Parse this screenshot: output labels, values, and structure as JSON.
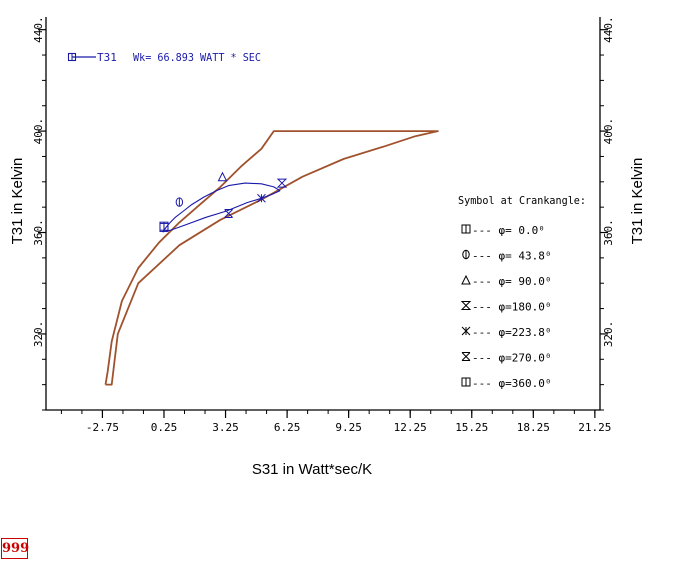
{
  "chart_data": {
    "type": "line",
    "title": "",
    "xlabel": "S31  in  Watt*sec/K",
    "ylabel_left": "T31  in Kelvin",
    "ylabel_right": "T31  in Kelvin",
    "xlim": [
      -5.5,
      21.5
    ],
    "ylim": [
      290,
      445
    ],
    "x_ticks": [
      -2.75,
      0.25,
      3.25,
      6.25,
      9.25,
      12.25,
      15.25,
      18.25,
      21.25
    ],
    "x_tick_labels": [
      "-2.75",
      "0.25",
      "3.25",
      "6.25",
      "9.25",
      "12.25",
      "15.25",
      "18.25",
      "21.25"
    ],
    "y_ticks": [
      320,
      360,
      400,
      440
    ],
    "y_tick_labels": [
      "320.",
      "360.",
      "400.",
      "440."
    ],
    "grid": false,
    "legend_entry": "T31",
    "work_label": "Wk= 66.893 WATT * SEC",
    "envelope": {
      "name": "envelope",
      "color": "#a0522d",
      "points": [
        [
          -2.6,
          300
        ],
        [
          -2.5,
          305
        ],
        [
          -2.3,
          317
        ],
        [
          -1.8,
          333
        ],
        [
          -1,
          346
        ],
        [
          0,
          356
        ],
        [
          1,
          364
        ],
        [
          2,
          371
        ],
        [
          3,
          378
        ],
        [
          4,
          386
        ],
        [
          5,
          393
        ],
        [
          5.6,
          400
        ],
        [
          13.6,
          400
        ],
        [
          12.5,
          398
        ],
        [
          11,
          394
        ],
        [
          9,
          389
        ],
        [
          7,
          382
        ],
        [
          5,
          373
        ],
        [
          3,
          365
        ],
        [
          1,
          355
        ],
        [
          -1,
          340
        ],
        [
          -2,
          320
        ],
        [
          -2.3,
          300
        ],
        [
          -2.6,
          300
        ]
      ]
    },
    "cycle": {
      "name": "T31",
      "color": "#1a1aaa",
      "points": [
        [
          0.25,
          361
        ],
        [
          0.5,
          363.5
        ],
        [
          0.8,
          366
        ],
        [
          1.2,
          368.5
        ],
        [
          1.6,
          371
        ],
        [
          2.2,
          374
        ],
        [
          2.8,
          376.5
        ],
        [
          3.4,
          378.5
        ],
        [
          4.2,
          379.5
        ],
        [
          5,
          379.2
        ],
        [
          5.6,
          378
        ],
        [
          5.9,
          376.5
        ],
        [
          5.5,
          375
        ],
        [
          5,
          373.5
        ],
        [
          4.3,
          371.8
        ],
        [
          3.3,
          368.5
        ],
        [
          2.3,
          366
        ],
        [
          1.3,
          363
        ],
        [
          0.6,
          361
        ],
        [
          0.2,
          360.3
        ],
        [
          0.25,
          361
        ]
      ]
    },
    "markers": [
      {
        "x": 0.25,
        "y": 362,
        "symbol": "square-bar"
      },
      {
        "x": 1.0,
        "y": 372,
        "symbol": "circle-bar"
      },
      {
        "x": 3.1,
        "y": 382,
        "symbol": "triangle"
      },
      {
        "x": 6.0,
        "y": 379.5,
        "symbol": "hourglass"
      },
      {
        "x": 5.0,
        "y": 373.5,
        "symbol": "asterisk"
      },
      {
        "x": 3.4,
        "y": 367.5,
        "symbol": "x-bar"
      },
      {
        "x": 0.25,
        "y": 362.5,
        "symbol": "square-bar"
      }
    ],
    "legend": {
      "title": "Symbol at Crankangle:",
      "entries": [
        {
          "symbol": "square-bar",
          "label": "---  φ=  0.0⁰"
        },
        {
          "symbol": "circle-bar",
          "label": "---  φ= 43.8⁰"
        },
        {
          "symbol": "triangle",
          "label": "---  φ= 90.0⁰"
        },
        {
          "symbol": "hourglass",
          "label": "---  φ=180.0⁰"
        },
        {
          "symbol": "asterisk",
          "label": "---  φ=223.8⁰"
        },
        {
          "symbol": "x-bar",
          "label": "---  φ=270.0⁰"
        },
        {
          "symbol": "square-bar",
          "label": "---  φ=360.0⁰"
        }
      ]
    }
  },
  "page_badge": "999"
}
